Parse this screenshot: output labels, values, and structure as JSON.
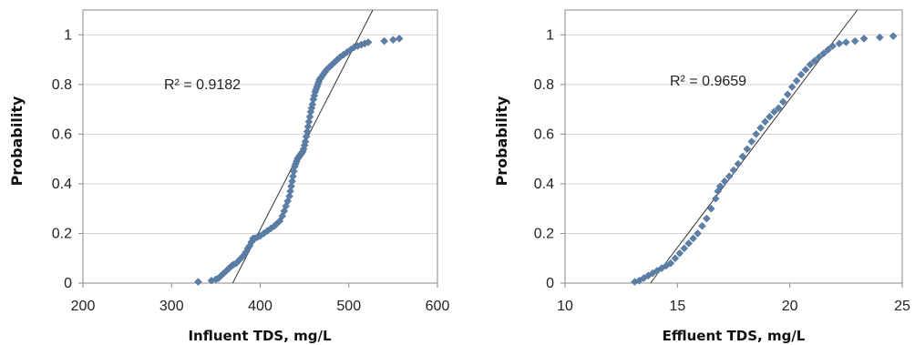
{
  "chart_data": [
    {
      "type": "scatter",
      "xlabel": "Influent TDS, mg/L",
      "ylabel": "Probability",
      "xlim": [
        200,
        600
      ],
      "ylim": [
        0,
        1.1
      ],
      "xticks": [
        200,
        300,
        400,
        500,
        600
      ],
      "yticks": [
        0,
        0.2,
        0.4,
        0.6,
        0.8,
        1
      ],
      "grid": "horizontal",
      "annotation": "R² = 0.9182",
      "trendline": {
        "x": [
          369,
          527
        ],
        "y": [
          0,
          1.1
        ]
      },
      "color": "#5b7fa6",
      "series": [
        {
          "x": [
            330,
            345,
            350,
            353,
            356,
            359,
            362,
            365,
            368,
            370,
            373,
            377,
            381,
            384,
            386,
            388,
            390,
            392,
            394,
            397,
            400,
            404,
            408,
            412,
            416,
            419,
            422,
            425,
            427,
            429,
            431,
            433,
            434,
            435,
            436,
            437,
            438,
            439,
            440,
            441,
            442,
            443,
            444,
            445,
            446,
            447,
            448,
            449,
            450,
            451,
            452,
            453,
            454,
            455,
            456,
            457,
            458,
            459,
            460,
            461,
            462,
            463,
            464,
            465,
            466,
            467,
            468,
            469,
            471,
            473,
            475,
            478,
            481,
            484,
            487,
            490,
            494,
            498,
            502,
            506,
            510,
            514,
            518,
            522,
            540,
            550,
            557
          ],
          "y": [
            0.005,
            0.01,
            0.015,
            0.02,
            0.03,
            0.04,
            0.05,
            0.06,
            0.07,
            0.075,
            0.08,
            0.095,
            0.11,
            0.125,
            0.14,
            0.15,
            0.165,
            0.18,
            0.18,
            0.185,
            0.19,
            0.2,
            0.21,
            0.22,
            0.23,
            0.24,
            0.25,
            0.27,
            0.29,
            0.31,
            0.33,
            0.35,
            0.37,
            0.39,
            0.41,
            0.43,
            0.45,
            0.47,
            0.48,
            0.49,
            0.5,
            0.505,
            0.51,
            0.515,
            0.52,
            0.525,
            0.53,
            0.54,
            0.555,
            0.57,
            0.59,
            0.61,
            0.63,
            0.65,
            0.67,
            0.69,
            0.705,
            0.72,
            0.74,
            0.755,
            0.77,
            0.78,
            0.79,
            0.8,
            0.81,
            0.82,
            0.825,
            0.83,
            0.84,
            0.85,
            0.86,
            0.87,
            0.88,
            0.89,
            0.9,
            0.91,
            0.92,
            0.93,
            0.94,
            0.95,
            0.955,
            0.96,
            0.965,
            0.97,
            0.975,
            0.98,
            0.985
          ]
        }
      ]
    },
    {
      "type": "scatter",
      "xlabel": "Effluent TDS, mg/L",
      "ylabel": "Probability",
      "xlim": [
        10,
        25
      ],
      "ylim": [
        0,
        1.1
      ],
      "xticks": [
        10,
        15,
        20,
        25
      ],
      "yticks": [
        0,
        0.2,
        0.4,
        0.6,
        0.8,
        1
      ],
      "grid": "horizontal",
      "annotation": "R² = 0.9659",
      "trendline": {
        "x": [
          13.8,
          23
        ],
        "y": [
          0,
          1.1
        ]
      },
      "color": "#5b7fa6",
      "series": [
        {
          "x": [
            13.1,
            13.3,
            13.5,
            13.7,
            13.9,
            14.1,
            14.3,
            14.5,
            14.7,
            14.9,
            15.1,
            15.3,
            15.5,
            15.7,
            15.9,
            16.1,
            16.3,
            16.5,
            16.7,
            16.8,
            16.9,
            17.1,
            17.3,
            17.5,
            17.7,
            17.9,
            18.1,
            18.3,
            18.5,
            18.7,
            18.9,
            19.1,
            19.3,
            19.5,
            19.7,
            19.9,
            20.1,
            20.3,
            20.5,
            20.7,
            20.9,
            21.1,
            21.3,
            21.5,
            21.7,
            21.9,
            22.2,
            22.5,
            22.9,
            23.3,
            24.0,
            24.6
          ],
          "y": [
            0.005,
            0.01,
            0.02,
            0.03,
            0.04,
            0.05,
            0.06,
            0.07,
            0.08,
            0.1,
            0.12,
            0.14,
            0.16,
            0.18,
            0.2,
            0.23,
            0.26,
            0.3,
            0.34,
            0.37,
            0.39,
            0.41,
            0.43,
            0.455,
            0.48,
            0.51,
            0.54,
            0.57,
            0.6,
            0.625,
            0.65,
            0.67,
            0.69,
            0.705,
            0.73,
            0.76,
            0.79,
            0.815,
            0.84,
            0.86,
            0.88,
            0.895,
            0.91,
            0.925,
            0.94,
            0.955,
            0.965,
            0.97,
            0.975,
            0.985,
            0.99,
            0.995
          ]
        }
      ]
    }
  ]
}
